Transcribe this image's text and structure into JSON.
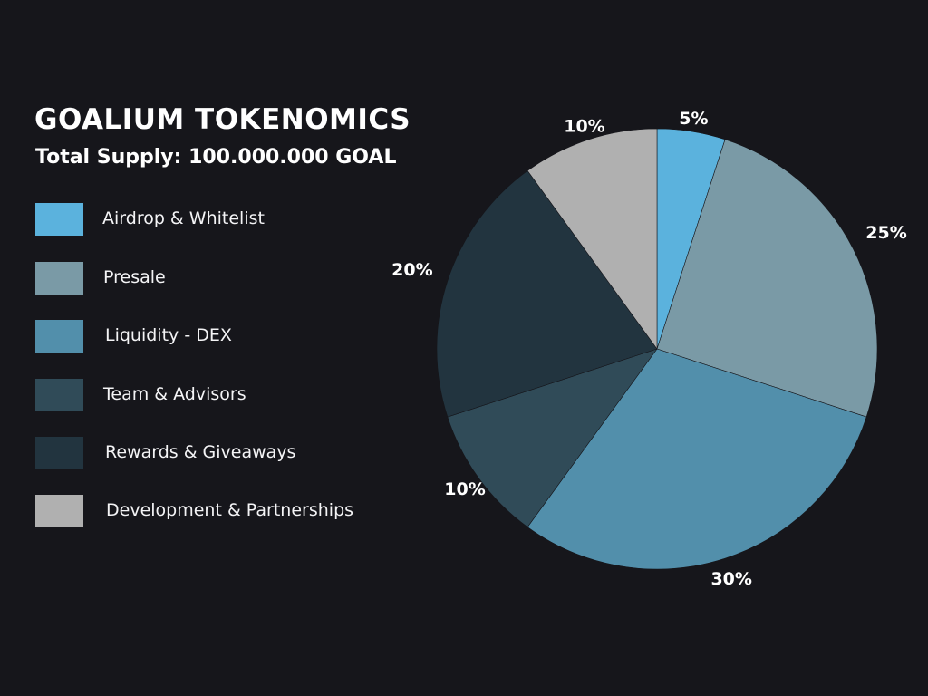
{
  "title": "GOALIUM TOKENOMICS",
  "subtitle": "Total Supply: 100.000.000 GOAL",
  "chart_data": {
    "type": "pie",
    "title": "GOALIUM TOKENOMICS",
    "subtitle": "Total Supply: 100.000.000 GOAL",
    "legend_position": "left",
    "slices": [
      {
        "label": "Airdrop & Whitelist",
        "value": 5,
        "value_label": "5%",
        "color": "#5bb2dd"
      },
      {
        "label": "Presale",
        "value": 25,
        "value_label": "25%",
        "color": "#7a9aa6"
      },
      {
        "label": "Liquidity - DEX",
        "value": 30,
        "value_label": "30%",
        "color": "#528fab"
      },
      {
        "label": "Team & Advisors",
        "value": 10,
        "value_label": "10%",
        "color": "#304b58"
      },
      {
        "label": "Rewards & Giveaways",
        "value": 20,
        "value_label": "20%",
        "color": "#22343f"
      },
      {
        "label": "Development & Partnerships",
        "value": 10,
        "value_label": "10%",
        "color": "#b0b0b0"
      }
    ]
  }
}
